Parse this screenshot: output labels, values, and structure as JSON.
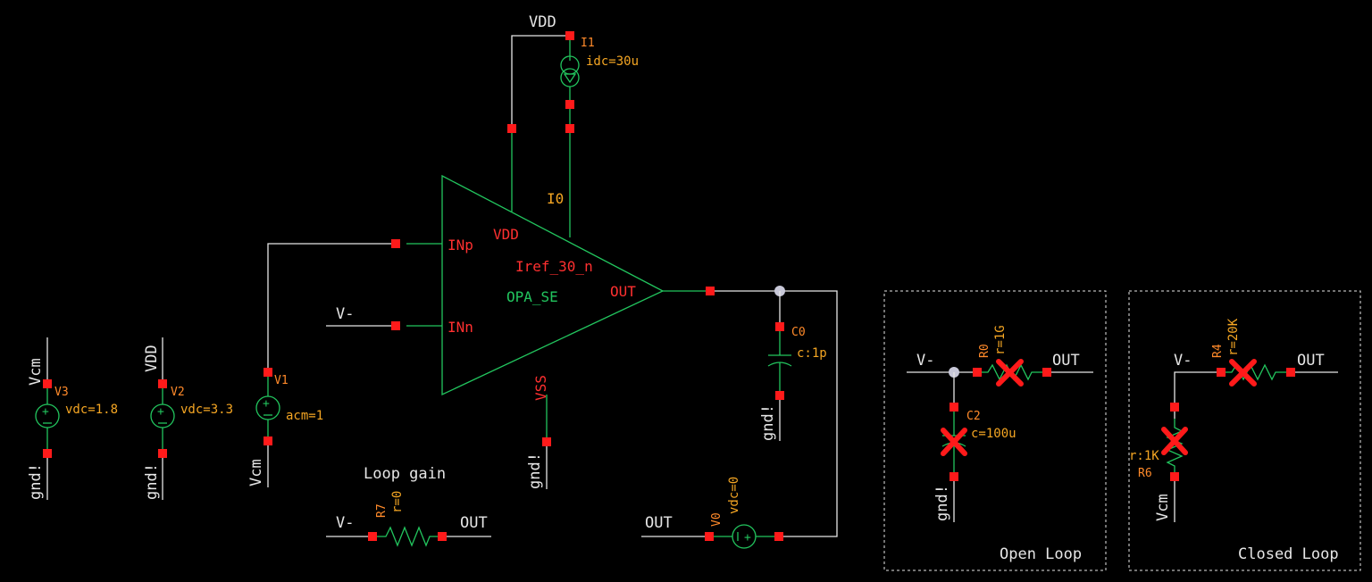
{
  "colors": {
    "background": "#000000",
    "wire": "#e6e6e6",
    "symbol": "#22c55e",
    "pin": "#ff1a1a",
    "param": "#f5a623"
  },
  "amp": {
    "pin_inp": "INp",
    "pin_inn": "INn",
    "pin_vdd": "VDD",
    "pin_out": "OUT",
    "pin_vss": "VSS",
    "inst_label": "I0",
    "param_text": "Iref_30_n",
    "cell_name": "OPA_SE"
  },
  "i1": {
    "net": "VDD",
    "name": "I1",
    "param": "idc=30u"
  },
  "v3": {
    "top_net": "Vcm",
    "name": "V3",
    "param": "vdc=1.8",
    "bot_net": "gnd!"
  },
  "v2": {
    "top_net": "VDD",
    "name": "V2",
    "param": "vdc=3.3",
    "bot_net": "gnd!"
  },
  "v1": {
    "name": "V1",
    "param": "acm=1",
    "bot_net": "Vcm"
  },
  "inn_net": "V-",
  "c0": {
    "name": "C0",
    "param": "c:1p",
    "bot_net": "gnd!"
  },
  "vss_gnd": "gnd!",
  "loop_gain": {
    "title": "Loop gain",
    "left_net": "V-",
    "name": "R7",
    "param": "r=0",
    "right_net": "OUT"
  },
  "v0": {
    "left_net": "OUT",
    "name": "V0",
    "param": "vdc=0"
  },
  "open_loop": {
    "title": "Open Loop",
    "left_net": "V-",
    "r_name": "R0",
    "r_param": "r=1G",
    "right_net": "OUT",
    "c_name": "C2",
    "c_param": "c=100u",
    "bot_net": "gnd!"
  },
  "closed_loop": {
    "title": "Closed Loop",
    "left_net": "V-",
    "r4_name": "R4",
    "r4_param": "r=20K",
    "right_net": "OUT",
    "r6_param": "r:1K",
    "r6_name": "R6",
    "bot_net": "Vcm"
  }
}
